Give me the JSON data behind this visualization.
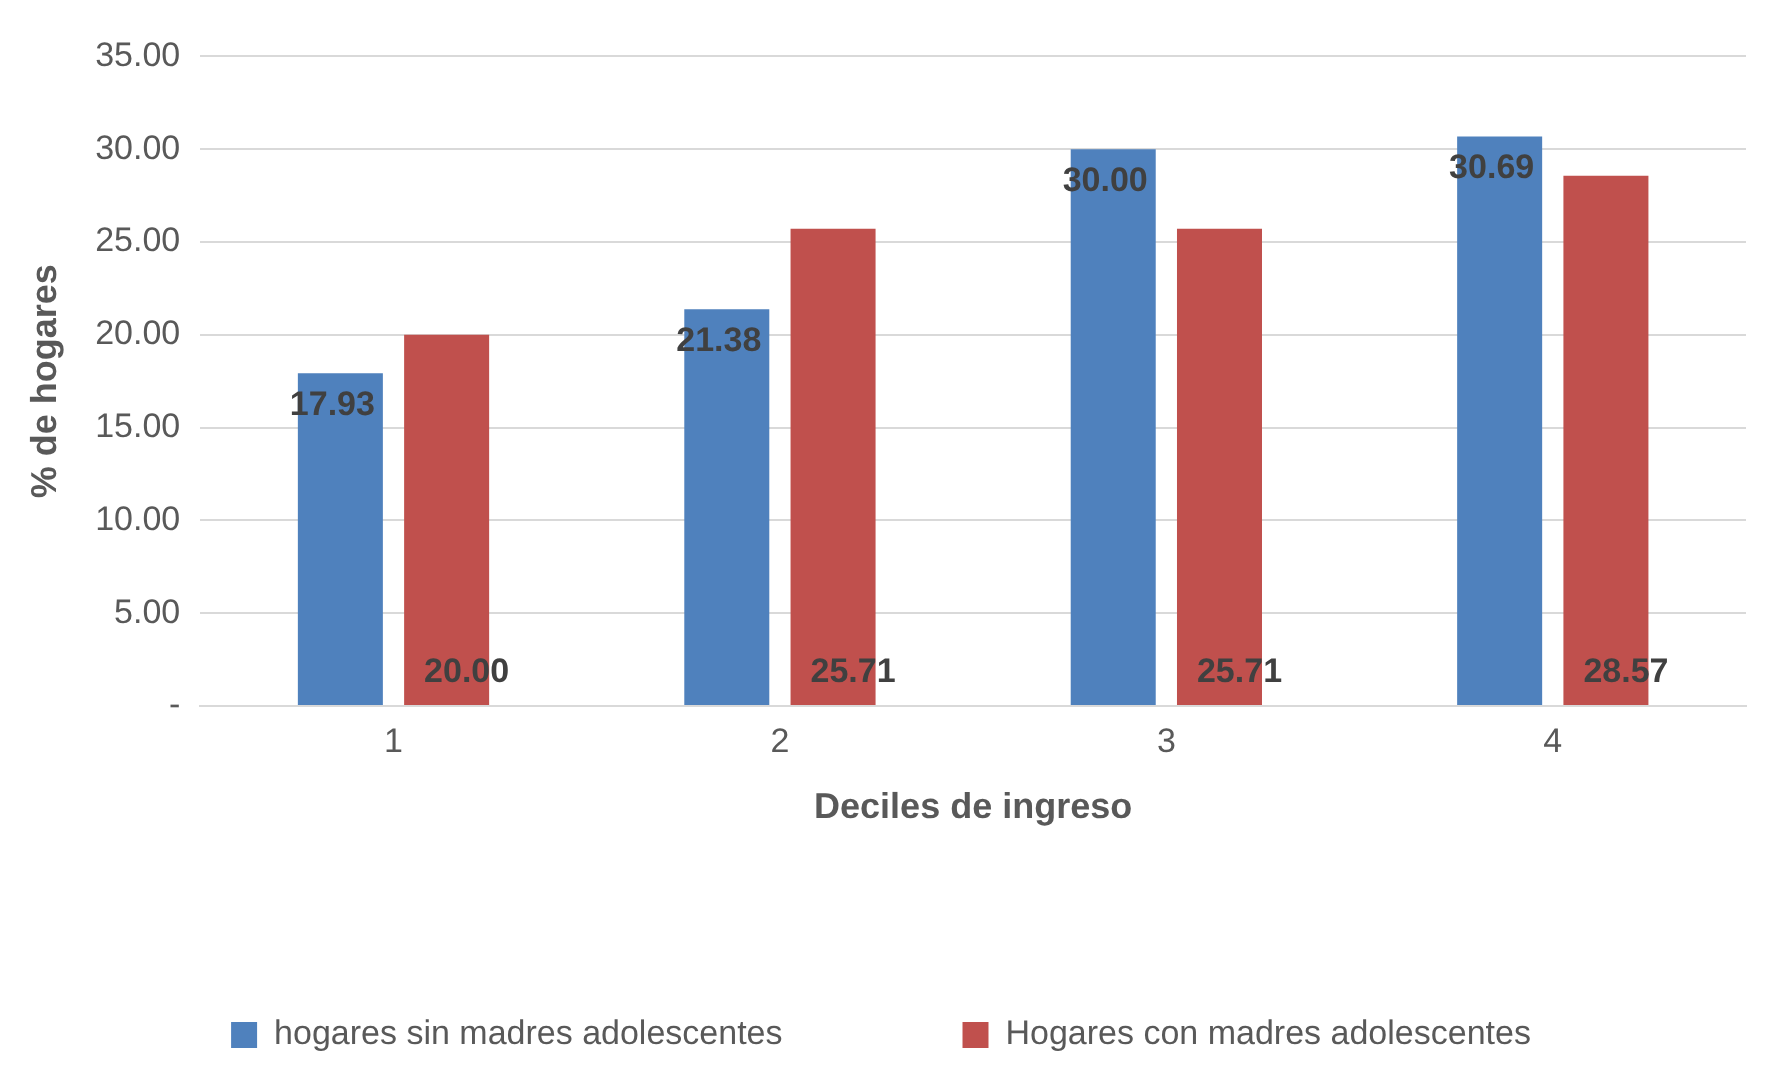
{
  "chart_data": {
    "type": "bar",
    "xlabel": "Deciles de ingreso",
    "ylabel": "% de hogares",
    "categories": [
      "1",
      "2",
      "3",
      "4"
    ],
    "series": [
      {
        "name": "hogares sin madres adolescentes",
        "color": "#4f81bd",
        "values": [
          17.93,
          21.38,
          30.0,
          30.69
        ],
        "value_labels": [
          "17.93",
          "21.38",
          "30.00",
          "30.69"
        ]
      },
      {
        "name": "Hogares con madres adolescentes",
        "color": "#c0504d",
        "values": [
          20.0,
          25.71,
          25.71,
          28.57
        ],
        "value_labels": [
          "20.00",
          "25.71",
          "25.71",
          "28.57"
        ]
      }
    ],
    "ylim": [
      0,
      35
    ],
    "yticks": [
      {
        "value": 0,
        "label": "-"
      },
      {
        "value": 5,
        "label": "5.00"
      },
      {
        "value": 10,
        "label": "10.00"
      },
      {
        "value": 15,
        "label": "15.00"
      },
      {
        "value": 20,
        "label": "20.00"
      },
      {
        "value": 25,
        "label": "25.00"
      },
      {
        "value": 30,
        "label": "30.00"
      },
      {
        "value": 35,
        "label": "35.00"
      }
    ],
    "grid": "y",
    "legend": "bottom"
  }
}
